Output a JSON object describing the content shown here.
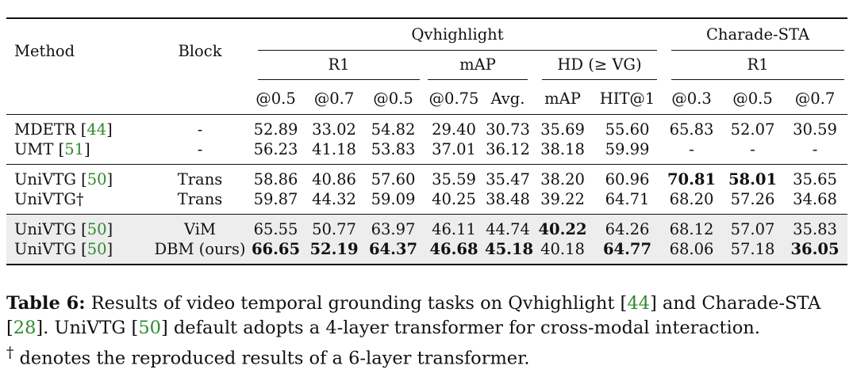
{
  "header": {
    "method": "Method",
    "block": "Block",
    "qvhighlight": "Qvhighlight",
    "charade": "Charade-STA",
    "r1": "R1",
    "map": "mAP",
    "hd": "HD (≥ VG)",
    "r1b": "R1",
    "subcols": [
      "@0.5",
      "@0.7",
      "@0.5",
      "@0.75",
      "Avg.",
      "mAP",
      "HIT@1",
      "@0.3",
      "@0.5",
      "@0.7"
    ]
  },
  "rows": [
    {
      "method": "MDETR",
      "cite": "44",
      "suffix": "",
      "block": "-",
      "values": [
        "52.89",
        "33.02",
        "54.82",
        "29.40",
        "30.73",
        "35.69",
        "55.60",
        "65.83",
        "52.07",
        "30.59"
      ],
      "bold": []
    },
    {
      "method": "UMT",
      "cite": "51",
      "suffix": "",
      "block": "-",
      "values": [
        "56.23",
        "41.18",
        "53.83",
        "37.01",
        "36.12",
        "38.18",
        "59.99",
        "-",
        "-",
        "-"
      ],
      "bold": []
    },
    {
      "method": "UniVTG",
      "cite": "50",
      "suffix": "",
      "block": "Trans",
      "values": [
        "58.86",
        "40.86",
        "57.60",
        "35.59",
        "35.47",
        "38.20",
        "60.96",
        "70.81",
        "58.01",
        "35.65"
      ],
      "bold": [
        7,
        8
      ]
    },
    {
      "method": "UniVTG†",
      "cite": "",
      "suffix": "",
      "block": "Trans",
      "values": [
        "59.87",
        "44.32",
        "59.09",
        "40.25",
        "38.48",
        "39.22",
        "64.71",
        "68.20",
        "57.26",
        "34.68"
      ],
      "bold": []
    },
    {
      "method": "UniVTG",
      "cite": "50",
      "suffix": "",
      "block": "ViM",
      "values": [
        "65.55",
        "50.77",
        "63.97",
        "46.11",
        "44.74",
        "40.22",
        "64.26",
        "68.12",
        "57.07",
        "35.83"
      ],
      "bold": [
        5
      ]
    },
    {
      "method": "UniVTG",
      "cite": "50",
      "suffix": "",
      "block": "DBM (ours)",
      "values": [
        "66.65",
        "52.19",
        "64.37",
        "46.68",
        "45.18",
        "40.18",
        "64.77",
        "68.06",
        "57.18",
        "36.05"
      ],
      "bold": [
        0,
        1,
        2,
        3,
        4,
        6,
        9
      ]
    }
  ],
  "caption": {
    "label": "Table 6:",
    "part1": " Results of video temporal grounding tasks on Qvhighlight [",
    "cite1": "44",
    "part2": "] and Charade-STA [",
    "cite2": "28",
    "part3": "]. UniVTG [",
    "cite3": "50",
    "part4": "] default adopts a 4-layer transformer for cross-modal interaction.",
    "dagger": "†",
    "part5": " denotes the reproduced results of a 6-layer transformer."
  }
}
